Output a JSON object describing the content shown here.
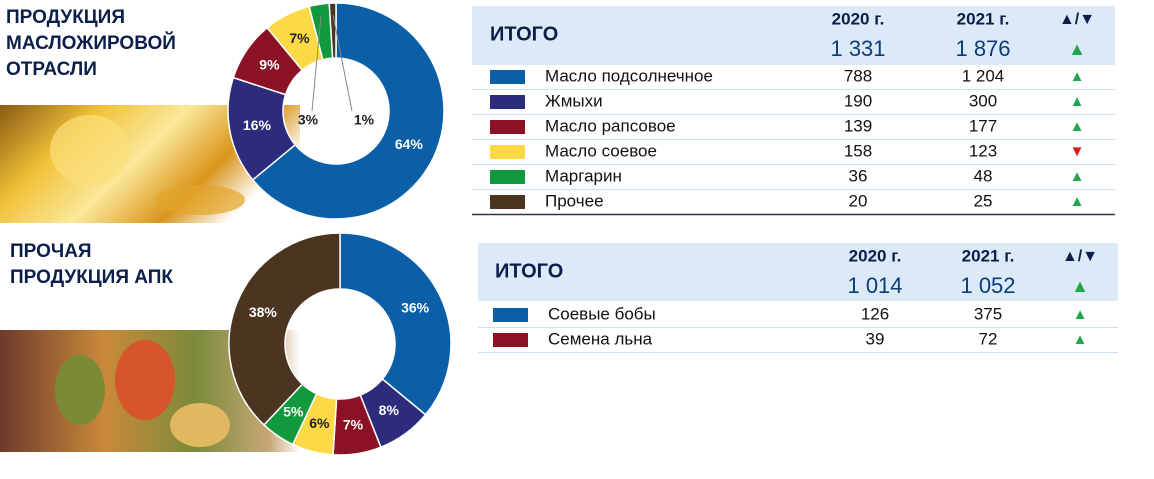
{
  "chart_data": [
    {
      "type": "pie",
      "title": "ПРОДУКЦИЯ МАСЛОЖИРОВОЙ ОТРАСЛИ",
      "values": [
        64,
        16,
        9,
        7,
        3,
        1
      ],
      "value_labels": [
        "64%",
        "16%",
        "9%",
        "7%",
        "3%",
        "1%"
      ],
      "colors": [
        "#0a5fa6",
        "#2d2b7c",
        "#8b1224",
        "#fdd947",
        "#12993e",
        "#4b3521"
      ],
      "label_colors": [
        "#ffffff",
        "#ffffff",
        "#ffffff",
        "#222222",
        "#222222",
        "#222222"
      ]
    },
    {
      "type": "pie",
      "title": "ПРОЧАЯ ПРОДУКЦИЯ АПК",
      "values": [
        36,
        8,
        7,
        6,
        5,
        38
      ],
      "value_labels": [
        "36%",
        "8%",
        "7%",
        "6%",
        "5%",
        "38%"
      ],
      "colors": [
        "#0a5fa6",
        "#2d2b7c",
        "#8b1224",
        "#fdd947",
        "#12993e",
        "#4b3521"
      ],
      "label_colors": [
        "#ffffff",
        "#ffffff",
        "#ffffff",
        "#222222",
        "#ffffff",
        "#ffffff"
      ]
    }
  ],
  "tables": [
    {
      "header": {
        "label": "ИТОГО",
        "col1": "2020 г.",
        "col2": "2021 г.",
        "trend": "▲/▼"
      },
      "total": {
        "col1": "1 331",
        "col2": "1 876",
        "trend": "▲",
        "trend_color": "#1fa84a"
      },
      "rows": [
        {
          "color": "#0a5fa6",
          "name": "Масло подсолнечное",
          "col1": "788",
          "col2": "1 204",
          "trend": "▲",
          "trend_color": "#1fa84a"
        },
        {
          "color": "#2d2b7c",
          "name": "Жмыхи",
          "col1": "190",
          "col2": "300",
          "trend": "▲",
          "trend_color": "#1fa84a"
        },
        {
          "color": "#8b1224",
          "name": "Масло рапсовое",
          "col1": "139",
          "col2": "177",
          "trend": "▲",
          "trend_color": "#1fa84a"
        },
        {
          "color": "#fdd947",
          "name": "Масло соевое",
          "col1": "158",
          "col2": "123",
          "trend": "▼",
          "trend_color": "#e01a1a"
        },
        {
          "color": "#12993e",
          "name": "Маргарин",
          "col1": "36",
          "col2": "48",
          "trend": "▲",
          "trend_color": "#1fa84a"
        },
        {
          "color": "#4b3521",
          "name": "Прочее",
          "col1": "20",
          "col2": "25",
          "trend": "▲",
          "trend_color": "#1fa84a"
        }
      ]
    },
    {
      "header": {
        "label": "ИТОГО",
        "col1": "2020 г.",
        "col2": "2021 г.",
        "trend": "▲/▼"
      },
      "total": {
        "col1": "1 014",
        "col2": "1 052",
        "trend": "▲",
        "trend_color": "#1fa84a"
      },
      "rows": [
        {
          "color": "#0a5fa6",
          "name": "Соевые бобы",
          "col1": "126",
          "col2": "375",
          "trend": "▲",
          "trend_color": "#1fa84a"
        },
        {
          "color": "#8b1224",
          "name": "Семена льна",
          "col1": "39",
          "col2": "72",
          "trend": "▲",
          "trend_color": "#1fa84a"
        }
      ]
    }
  ]
}
